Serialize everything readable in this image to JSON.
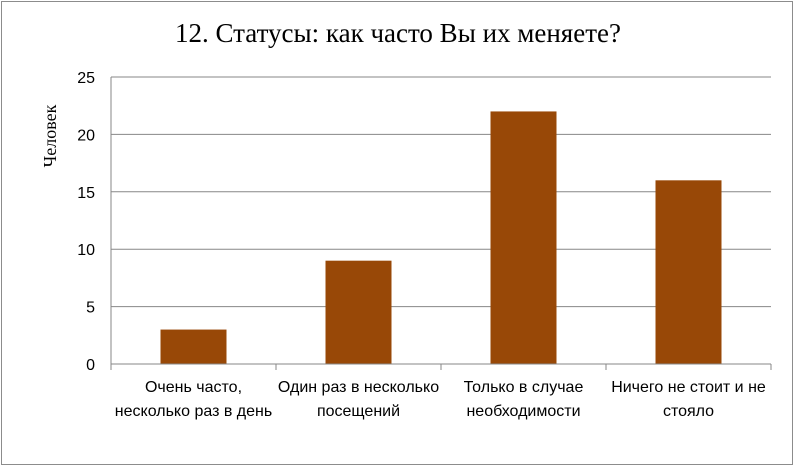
{
  "chart_data": {
    "type": "bar",
    "title": "12. Статусы: как часто Вы их меняете?",
    "ylabel": "Человек",
    "xlabel": "",
    "categories": [
      "Очень часто, несколько раз в день",
      "Один раз в несколько посещений",
      "Только в случае необходимости",
      "Ничего не стоит и не стояло"
    ],
    "values": [
      3,
      9,
      22,
      16
    ],
    "ylim": [
      0,
      25
    ],
    "yticks": [
      "0",
      "5",
      "10",
      "15",
      "20",
      "25"
    ],
    "grid": true,
    "legend": "none",
    "bar_color": "#984807",
    "grid_color": "#878787"
  }
}
